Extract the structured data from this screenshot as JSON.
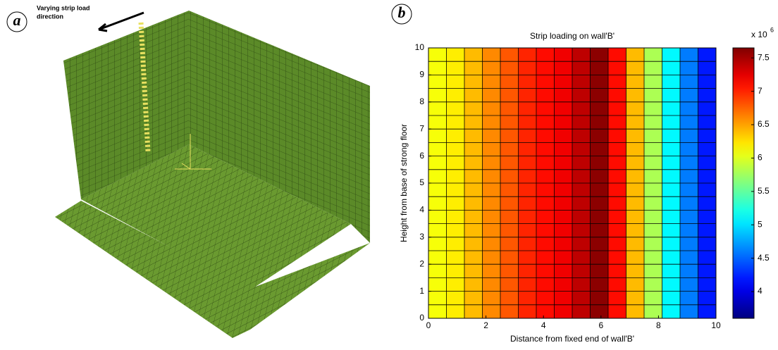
{
  "panels": {
    "a": "a",
    "b": "b"
  },
  "annotation": [
    "Varying strip load",
    "direction"
  ],
  "chart_data": {
    "type": "heatmap",
    "title": "Strip loading on wall'B'",
    "xlabel": "Distance from fixed end of wall'B'",
    "ylabel": "Height from base of strong floor",
    "xbins": [
      0,
      0.625,
      1.25,
      1.875,
      2.5,
      3.125,
      3.75,
      4.375,
      5,
      5.625,
      6.25,
      6.875,
      7.5,
      8.125,
      8.75,
      9.375,
      10
    ],
    "ybins": [
      0,
      0.5,
      1,
      1.5,
      2,
      2.5,
      3,
      3.5,
      4,
      4.5,
      5,
      5.5,
      6,
      6.5,
      7,
      7.5,
      8,
      8.5,
      9,
      9.5,
      10
    ],
    "values": [
      6.1,
      6.2,
      6.4,
      6.6,
      6.8,
      7.0,
      7.1,
      7.2,
      7.4,
      7.6,
      7.1,
      6.4,
      5.8,
      5.1,
      4.6,
      4.2
    ],
    "xlim": [
      0,
      10
    ],
    "ylim": [
      0,
      10
    ],
    "xticks": [
      0,
      2,
      4,
      6,
      8,
      10
    ],
    "yticks": [
      0,
      1,
      2,
      3,
      4,
      5,
      6,
      7,
      8,
      9,
      10
    ],
    "colormap": "jet",
    "clim": [
      3.6,
      7.65
    ],
    "cticks": [
      4,
      4.5,
      5,
      5.5,
      6,
      6.5,
      7,
      7.5
    ],
    "cmultiplier": "x 10",
    "cexponent": "6"
  }
}
